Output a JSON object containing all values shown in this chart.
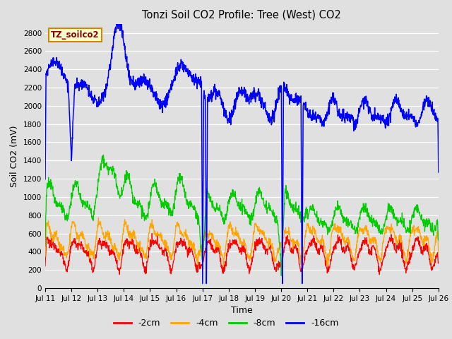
{
  "title": "Tonzi Soil CO2 Profile: Tree (West) CO2",
  "ylabel": "Soil CO2 (mV)",
  "xlabel": "Time",
  "label_text": "TZ_soilco2",
  "legend_labels": [
    "-2cm",
    "-4cm",
    "-8cm",
    "-16cm"
  ],
  "legend_colors": [
    "#ff0000",
    "#ffa500",
    "#00cc00",
    "#0000ff"
  ],
  "ylim": [
    0,
    2900
  ],
  "yticks": [
    0,
    200,
    400,
    600,
    800,
    1000,
    1200,
    1400,
    1600,
    1800,
    2000,
    2200,
    2400,
    2600,
    2800
  ],
  "bg_color": "#e0e0e0",
  "plot_bg_color": "#e0e0e0",
  "grid_color": "#ffffff",
  "n_points": 1440,
  "x_start": 0,
  "x_end": 15,
  "xtick_positions": [
    0,
    1,
    2,
    3,
    4,
    5,
    6,
    7,
    8,
    9,
    10,
    11,
    12,
    13,
    14,
    15
  ],
  "xtick_labels": [
    "Jul 11",
    "Jul 12",
    "Jul 13",
    "Jul 14",
    "Jul 15",
    "Jul 16",
    "Jul 17",
    "Jul 18",
    "Jul 19",
    "Jul 20",
    "Jul 21",
    "Jul 22",
    "Jul 23",
    "Jul 24",
    "Jul 25",
    "Jul 26"
  ]
}
